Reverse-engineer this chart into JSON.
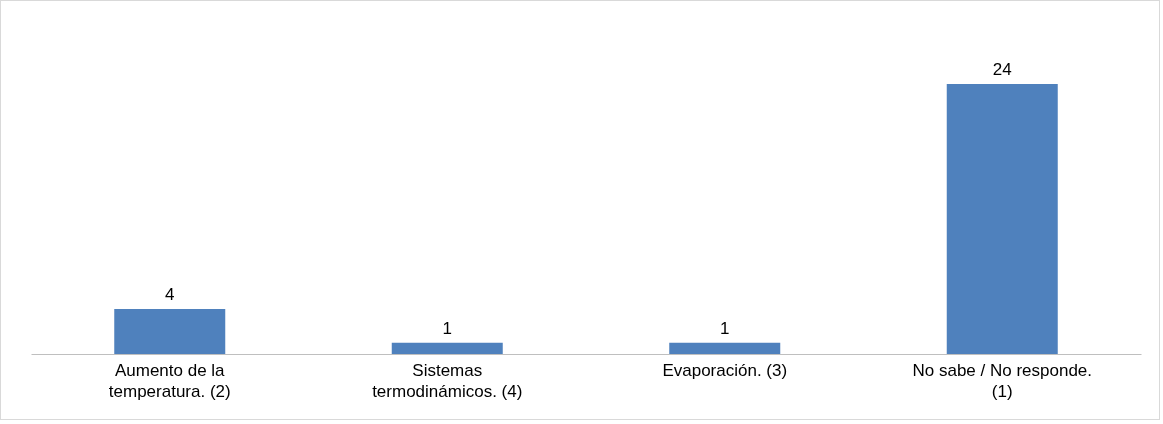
{
  "chart_data": {
    "type": "bar",
    "categories": [
      "Aumento de la temperatura. (2)",
      "Sistemas termodinámicos. (4)",
      "Evaporación. (3)",
      "No sabe / No responde. (1)"
    ],
    "values": [
      4,
      1,
      1,
      24
    ],
    "color": "#4f81bd",
    "data_labels": true
  }
}
